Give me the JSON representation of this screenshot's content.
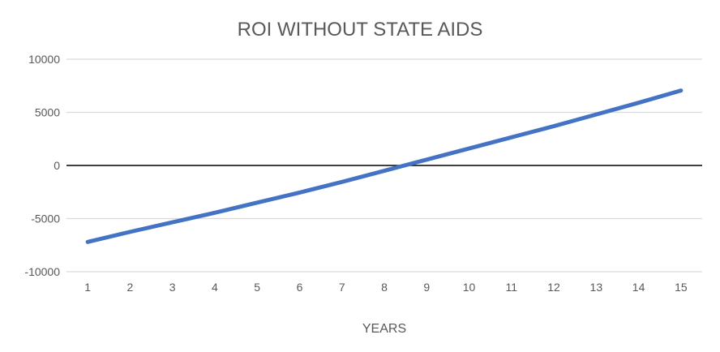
{
  "chart_data": {
    "type": "line",
    "title": "ROI WITHOUT STATE AIDS",
    "xlabel": "YEARS",
    "ylabel": "",
    "categories": [
      "1",
      "2",
      "3",
      "4",
      "5",
      "6",
      "7",
      "8",
      "9",
      "10",
      "11",
      "12",
      "13",
      "14",
      "15"
    ],
    "y_ticks": [
      "10000",
      "5000",
      "0",
      "-5000",
      "-10000"
    ],
    "ylim": [
      -10000,
      10000
    ],
    "grid": true,
    "legend": "none",
    "series": [
      {
        "name": "ROI",
        "color": "#4472C4",
        "values": [
          -7200,
          -6250,
          -5350,
          -4450,
          -3500,
          -2550,
          -1550,
          -500,
          550,
          1600,
          2650,
          3700,
          4800,
          5900,
          7050
        ]
      }
    ]
  }
}
